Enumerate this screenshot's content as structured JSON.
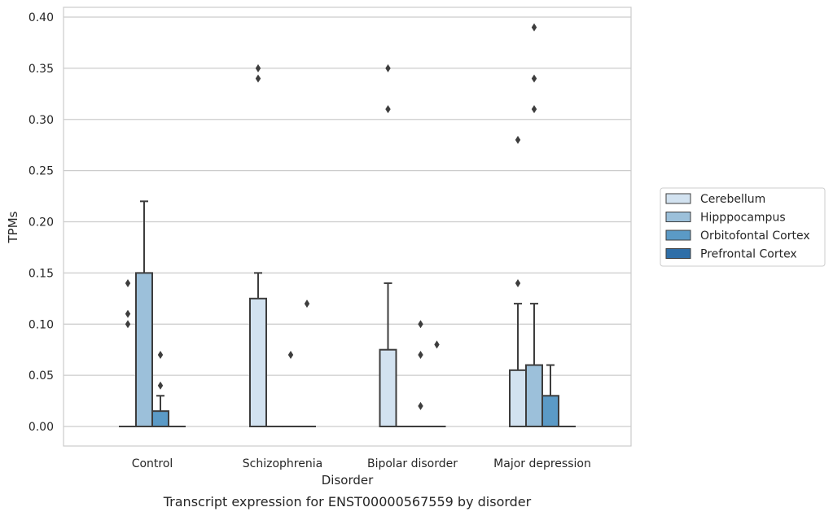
{
  "chart_data": {
    "type": "box",
    "title": "",
    "caption": "Transcript expression for ENST00000567559 by disorder",
    "xlabel": "Disorder",
    "ylabel": "TPMs",
    "ylim": [
      -0.02,
      0.41
    ],
    "yticks": [
      0.0,
      0.05,
      0.1,
      0.15,
      0.2,
      0.25,
      0.3,
      0.35,
      0.4
    ],
    "ytick_labels": [
      "0.00",
      "0.05",
      "0.10",
      "0.15",
      "0.20",
      "0.25",
      "0.30",
      "0.35",
      "0.40"
    ],
    "grid": "horizontal",
    "legend_position": "right",
    "categories": [
      "Control",
      "Schizophrenia",
      "Bipolar disorder",
      "Major depression"
    ],
    "series": [
      {
        "name": "Cerebellum",
        "color": "#d2e2f0",
        "boxes": [
          {
            "q1": 0.0,
            "median": 0.0,
            "q3": 0.0,
            "whisker_low": 0.0,
            "whisker_high": 0.0,
            "outliers": [
              0.1,
              0.11,
              0.14
            ]
          },
          {
            "q1": 0.0,
            "median": 0.0,
            "q3": 0.125,
            "whisker_low": 0.0,
            "whisker_high": 0.15,
            "outliers": [
              0.34,
              0.35
            ]
          },
          {
            "q1": 0.0,
            "median": 0.0,
            "q3": 0.075,
            "whisker_low": 0.0,
            "whisker_high": 0.14,
            "outliers": [
              0.31,
              0.35
            ]
          },
          {
            "q1": 0.0,
            "median": 0.0,
            "q3": 0.055,
            "whisker_low": 0.0,
            "whisker_high": 0.12,
            "outliers": [
              0.14,
              0.28
            ]
          }
        ]
      },
      {
        "name": "Hipppocampus",
        "color": "#9cc0da",
        "boxes": [
          {
            "q1": 0.0,
            "median": 0.0,
            "q3": 0.15,
            "whisker_low": 0.0,
            "whisker_high": 0.22,
            "outliers": []
          },
          {
            "q1": 0.0,
            "median": 0.0,
            "q3": 0.0,
            "whisker_low": 0.0,
            "whisker_high": 0.0,
            "outliers": []
          },
          {
            "q1": 0.0,
            "median": 0.0,
            "q3": 0.0,
            "whisker_low": 0.0,
            "whisker_high": 0.0,
            "outliers": []
          },
          {
            "q1": 0.0,
            "median": 0.0,
            "q3": 0.06,
            "whisker_low": 0.0,
            "whisker_high": 0.12,
            "outliers": [
              0.31,
              0.34,
              0.39
            ]
          }
        ]
      },
      {
        "name": "Orbitofontal Cortex",
        "color": "#5b9ac6",
        "boxes": [
          {
            "q1": 0.0,
            "median": 0.0,
            "q3": 0.015,
            "whisker_low": 0.0,
            "whisker_high": 0.03,
            "outliers": [
              0.04,
              0.07
            ]
          },
          {
            "q1": 0.0,
            "median": 0.0,
            "q3": 0.0,
            "whisker_low": 0.0,
            "whisker_high": 0.0,
            "outliers": [
              0.07
            ]
          },
          {
            "q1": 0.0,
            "median": 0.0,
            "q3": 0.0,
            "whisker_low": 0.0,
            "whisker_high": 0.0,
            "outliers": [
              0.02,
              0.07,
              0.1
            ]
          },
          {
            "q1": 0.0,
            "median": 0.0,
            "q3": 0.03,
            "whisker_low": 0.0,
            "whisker_high": 0.06,
            "outliers": []
          }
        ]
      },
      {
        "name": "Prefrontal Cortex",
        "color": "#2e6ea8",
        "boxes": [
          {
            "q1": 0.0,
            "median": 0.0,
            "q3": 0.0,
            "whisker_low": 0.0,
            "whisker_high": 0.0,
            "outliers": []
          },
          {
            "q1": 0.0,
            "median": 0.0,
            "q3": 0.0,
            "whisker_low": 0.0,
            "whisker_high": 0.0,
            "outliers": [
              0.12
            ]
          },
          {
            "q1": 0.0,
            "median": 0.0,
            "q3": 0.0,
            "whisker_low": 0.0,
            "whisker_high": 0.0,
            "outliers": [
              0.08
            ]
          },
          {
            "q1": 0.0,
            "median": 0.0,
            "q3": 0.0,
            "whisker_low": 0.0,
            "whisker_high": 0.0,
            "outliers": []
          }
        ]
      }
    ]
  }
}
